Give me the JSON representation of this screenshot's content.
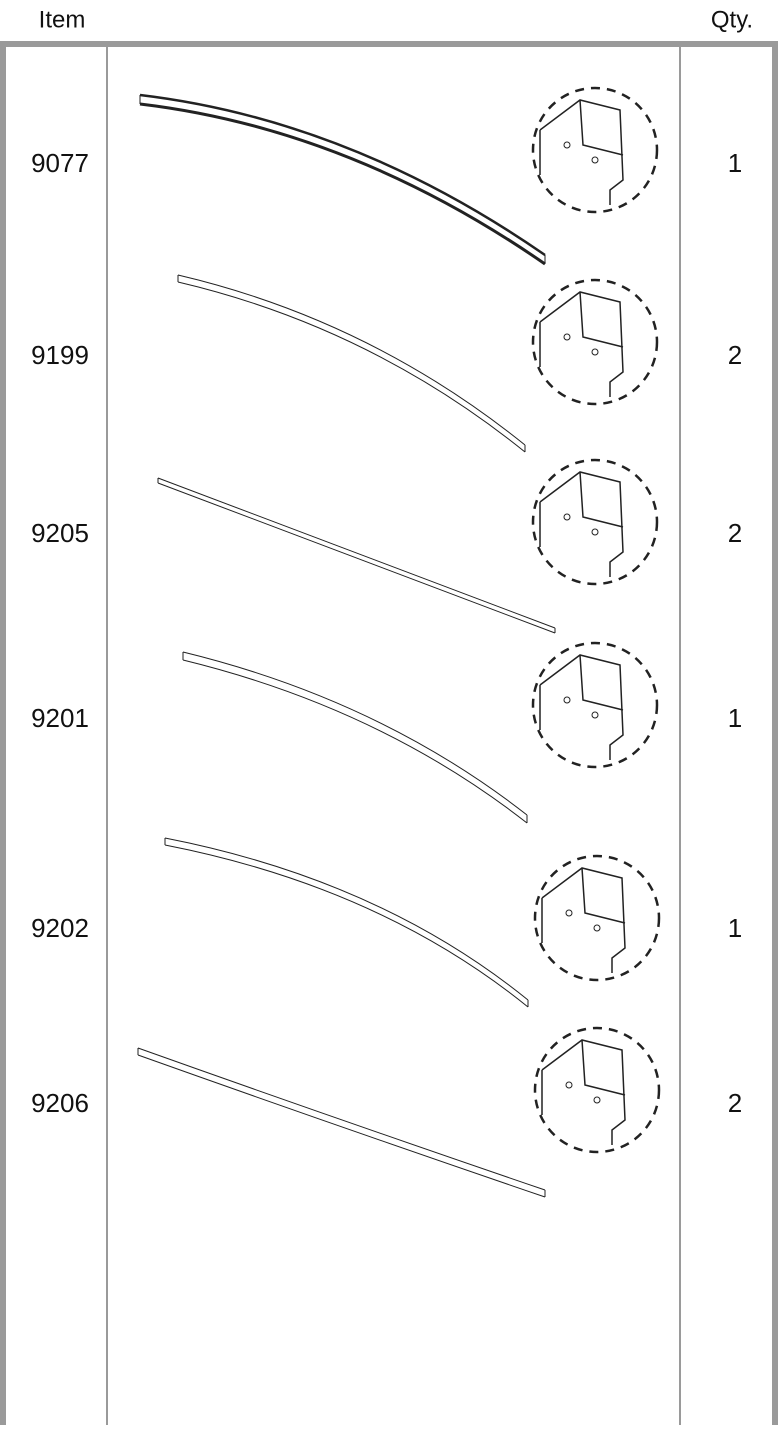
{
  "header": {
    "item": "Item",
    "qty": "Qty."
  },
  "table": {
    "rows": [
      {
        "item": "9077",
        "qty": 1
      },
      {
        "item": "9199",
        "qty": 2
      },
      {
        "item": "9205",
        "qty": 2
      },
      {
        "item": "9201",
        "qty": 1
      },
      {
        "item": "9202",
        "qty": 1
      },
      {
        "item": "9206",
        "qty": 2
      }
    ]
  }
}
